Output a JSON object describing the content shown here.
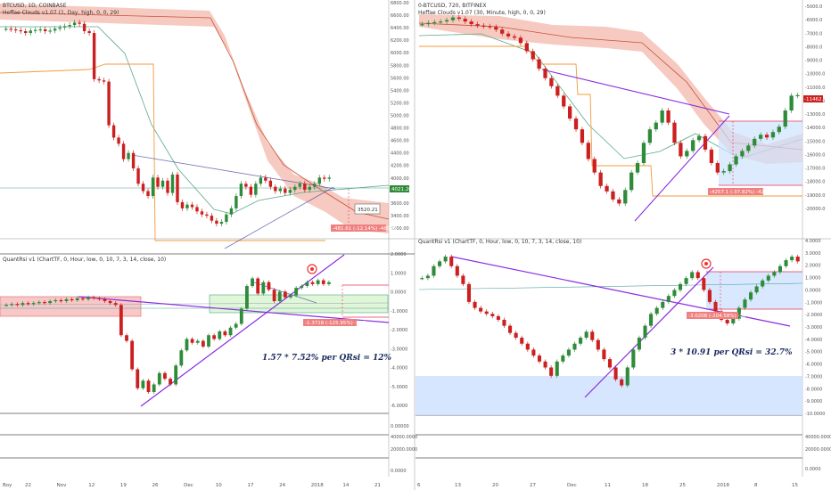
{
  "colors": {
    "up": "#2e8b3a",
    "down": "#cc1f1f",
    "cloud": "#ef9f8c",
    "cloud_line": "#c4533a",
    "sma": "#5aa88a",
    "orange": "#f39a3a",
    "trend_blue": "#3a3aa0",
    "trend_purple": "#8a2be2",
    "ref_line": "#4aa0a0",
    "box_blue": "#cfe2ff",
    "box_red": "#f5b5b5",
    "box_green": "#d9f2d0"
  },
  "chart_data": [
    {
      "panel": "top-left",
      "type": "candlestick",
      "header": [
        "BTCUSD, 1D, COINBASE",
        "Heffae Clouds v1.07 (1, Day, high, 0, 0, 29)"
      ],
      "y_axis": [
        "6800.00",
        "6600.00",
        "6400.00",
        "6200.00",
        "6000.00",
        "5800.00",
        "5600.00",
        "5400.00",
        "5200.00",
        "5000.00",
        "4800.00",
        "4600.00",
        "4400.00",
        "4200.00",
        "4000.00",
        "3800.00",
        "3600.00",
        "3400.00",
        "3200.00"
      ],
      "price_tag": "4021.20",
      "labels": [
        "3520.21",
        "-481.61 (-12.14%) -48096"
      ],
      "closes": [
        6420,
        6410,
        6395,
        6380,
        6350,
        6390,
        6400,
        6410,
        6380,
        6390,
        6420,
        6440,
        6460,
        6480,
        6520,
        6500,
        6380,
        6350,
        5600,
        5580,
        5560,
        4850,
        4650,
        4550,
        4300,
        4400,
        4150,
        3900,
        3780,
        3700,
        4000,
        3850,
        3950,
        3750,
        4050,
        3600,
        3500,
        3560,
        3520,
        3450,
        3400,
        3380,
        3300,
        3250,
        3280,
        3400,
        3500,
        3700,
        3900,
        3850,
        3720,
        3900,
        4000,
        3950,
        3850,
        3780,
        3820,
        3750,
        3800,
        3850,
        3900,
        3800,
        3850,
        3900,
        4000,
        3980,
        4000
      ]
    },
    {
      "panel": "top-right",
      "type": "candlestick",
      "header": [
        "0-BTCUSD, 720, BITFINEX",
        "Heffae Clouds v1.07 (30, Minute, high, 0, 0, 29)"
      ],
      "y_axis": [
        "-5000.0",
        "-6000.0",
        "-7000.0",
        "-8000.0",
        "-9000.0",
        "-10000.0",
        "-11000.0",
        "-12000.0",
        "-13000.0",
        "-14000.0",
        "-15000.0",
        "-16000.0",
        "-17000.0",
        "-18000.0",
        "-19000.0",
        "-20000.0"
      ],
      "price_tag": "-11462.0",
      "labels": [
        "-4257.1 (-37.82%) -42573"
      ],
      "closes": [
        -6200,
        -6100,
        -6050,
        -6000,
        -5900,
        -5700,
        -5800,
        -6000,
        -6200,
        -6300,
        -6350,
        -6400,
        -6600,
        -6900,
        -7100,
        -7200,
        -7600,
        -8200,
        -8800,
        -9500,
        -10200,
        -10800,
        -11500,
        -12300,
        -13200,
        -14000,
        -15000,
        -16200,
        -17200,
        -18200,
        -18600,
        -19200,
        -19500,
        -18500,
        -17200,
        -16500,
        -15000,
        -14000,
        -13500,
        -12600,
        -13500,
        -15000,
        -16000,
        -15600,
        -14800,
        -14500,
        -15500,
        -16500,
        -17200,
        -17100,
        -16600,
        -16000,
        -15600,
        -15200,
        -14700,
        -14400,
        -14600,
        -14200,
        -13800,
        -12600,
        -11500,
        -11462
      ]
    },
    {
      "panel": "bottom-left",
      "type": "candlestick",
      "header": [
        "QuantRsi v1 (ChartTF, 0, Hour, low, 0, 10, 7, 3, 14, close, 10)"
      ],
      "y_axis": [
        "2.0000",
        "1.0000",
        "0.0000",
        "-1.0000",
        "-2.0000",
        "-3.0000",
        "-4.0000",
        "-5.0000",
        "-6.0000",
        "0.00000",
        "40000.0000",
        "20000.0000",
        "0.0000"
      ],
      "labels": [
        "-1.3718 (-125.95%) -137"
      ],
      "note": "1.57 * 7.52% per QRsi = 12%",
      "closes": [
        -0.6,
        -0.55,
        -0.6,
        -0.5,
        -0.55,
        -0.5,
        -0.45,
        -0.5,
        -0.4,
        -0.35,
        -0.4,
        -0.3,
        -0.35,
        -0.25,
        -0.3,
        -0.2,
        -0.25,
        -0.3,
        -0.4,
        -0.5,
        -0.6,
        -2.2,
        -2.5,
        -4.0,
        -5.0,
        -4.6,
        -5.2,
        -4.8,
        -4.2,
        -4.5,
        -4.8,
        -3.8,
        -3.0,
        -2.4,
        -2.6,
        -2.5,
        -2.8,
        -2.2,
        -2.4,
        -2.0,
        -2.2,
        -1.8,
        -1.6,
        -0.8,
        0.4,
        0.8,
        0.0,
        0.6,
        0.2,
        -0.4,
        0.1,
        -0.2,
        -0.1,
        0.3,
        0.4,
        0.6,
        0.5,
        0.7,
        0.5,
        0.6
      ]
    },
    {
      "panel": "bottom-right",
      "type": "candlestick",
      "header": [
        "QuantRsi v1 (ChartTF, 0, Hour, low, 0, 10, 7, 3, 14, close, 10)"
      ],
      "y_axis": [
        "4.0000",
        "3.0000",
        "2.0000",
        "1.0000",
        "0.0000",
        "-1.0000",
        "-2.0000",
        "-3.0000",
        "-4.0000",
        "-5.0000",
        "-6.0000",
        "-7.0000",
        "-8.0000",
        "-9.0000",
        "-10.0000",
        "40000.0000",
        "20000.0000",
        "0.0000"
      ],
      "labels": [
        "-3.0208 (-204.58%) -30"
      ],
      "note": "3 * 10.91 per QRsi = 32.7%",
      "closes": [
        1.0,
        1.2,
        2.0,
        2.4,
        2.8,
        2.0,
        1.2,
        0.5,
        -1.0,
        -1.5,
        -1.8,
        -2.0,
        -2.2,
        -2.5,
        -3.0,
        -3.6,
        -4.0,
        -4.5,
        -5.0,
        -5.5,
        -6.0,
        -6.5,
        -7.2,
        -6.0,
        -5.5,
        -5.0,
        -4.5,
        -4.0,
        -3.5,
        -4.2,
        -5.0,
        -5.8,
        -6.5,
        -7.5,
        -8.0,
        -6.5,
        -5.0,
        -4.0,
        -3.0,
        -2.0,
        -1.5,
        -1.0,
        -0.5,
        0.0,
        0.5,
        1.0,
        1.5,
        1.0,
        0.0,
        -1.0,
        -1.8,
        -2.5,
        -2.8,
        -2.4,
        -1.5,
        -0.8,
        -0.2,
        0.3,
        0.8,
        1.2,
        1.5,
        2.0,
        2.5,
        2.8,
        2.4
      ]
    }
  ],
  "x_axis_left": [
    "22",
    "Nov",
    "12",
    "19",
    "26",
    "Dec",
    "10",
    "17",
    "24",
    "2018",
    "14",
    "21"
  ],
  "x_axis_right": [
    "6",
    "13",
    "20",
    "27",
    "Dec",
    "11",
    "18",
    "25",
    "2018",
    "8",
    "15"
  ],
  "misc_labels": [
    "Boy"
  ]
}
